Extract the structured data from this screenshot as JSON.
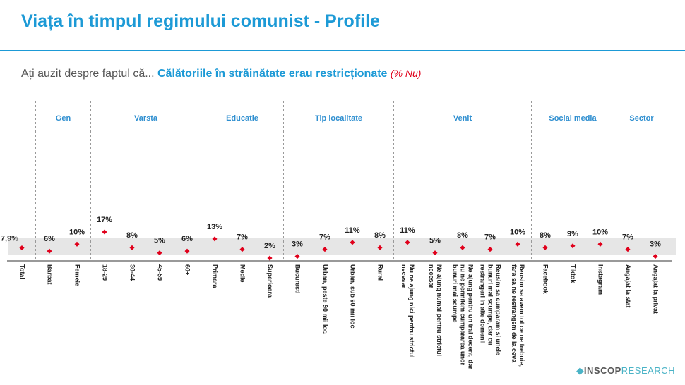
{
  "chart_data": {
    "type": "dot",
    "title": "Viața în timpul regimului comunist - Profile",
    "subtitle": {
      "lead": "Ați auzit despre faptul că...",
      "topic": "Călătoriile în străinătate erau restricționate",
      "unit": "(% Nu)"
    },
    "color": "#e0001b",
    "logo": {
      "brand": "INSCOP",
      "suffix": "RESEARCH"
    },
    "groups": [
      {
        "name": null,
        "categories": [
          "Total"
        ],
        "values": [
          7.9
        ],
        "value_labels": [
          "7,9%"
        ]
      },
      {
        "name": "Gen",
        "categories": [
          "Barbat",
          "Femeie"
        ],
        "values": [
          6,
          10
        ],
        "value_labels": [
          "6%",
          "10%"
        ]
      },
      {
        "name": "Varsta",
        "categories": [
          "18-29",
          "30-44",
          "45-59",
          "60+"
        ],
        "values": [
          17,
          8,
          5,
          6
        ],
        "value_labels": [
          "17%",
          "8%",
          "5%",
          "6%"
        ]
      },
      {
        "name": "Educatie",
        "categories": [
          "Primara",
          "Medie",
          "Superioara"
        ],
        "values": [
          13,
          7,
          2
        ],
        "value_labels": [
          "13%",
          "7%",
          "2%"
        ]
      },
      {
        "name": "Tip localitate",
        "categories": [
          "Bucuresti",
          "Urban, peste 90 mii loc",
          "Urban, sub 90 mii loc",
          "Rural"
        ],
        "values": [
          3,
          7,
          11,
          8
        ],
        "value_labels": [
          "3%",
          "7%",
          "11%",
          "8%"
        ]
      },
      {
        "name": "Venit",
        "categories": [
          "Nu ne ajung nici pentru strictul necesar",
          "Ne ajung numai pentru strictul necesar",
          "Ne ajung pentru un trai decent, dar nu ne permitem cumpararea unor bunuri mai scumpe",
          "Reusim sa cumparam si unele bunuri mai scumpe, dar cu restrangeri in alte domenii",
          "Reusim sa avem tot ce ne trebuie, fara sa ne restrangem de la ceva"
        ],
        "values": [
          11,
          5,
          8,
          7,
          10
        ],
        "value_labels": [
          "11%",
          "5%",
          "8%",
          "7%",
          "10%"
        ]
      },
      {
        "name": "Social media",
        "categories": [
          "Facebook",
          "Tiktok",
          "Instagram"
        ],
        "values": [
          8,
          9,
          10
        ],
        "value_labels": [
          "8%",
          "9%",
          "10%"
        ]
      },
      {
        "name": "Sector",
        "categories": [
          "Angajat la stat",
          "Angajat la privat"
        ],
        "values": [
          7,
          3
        ],
        "value_labels": [
          "7%",
          "3%"
        ]
      }
    ]
  }
}
